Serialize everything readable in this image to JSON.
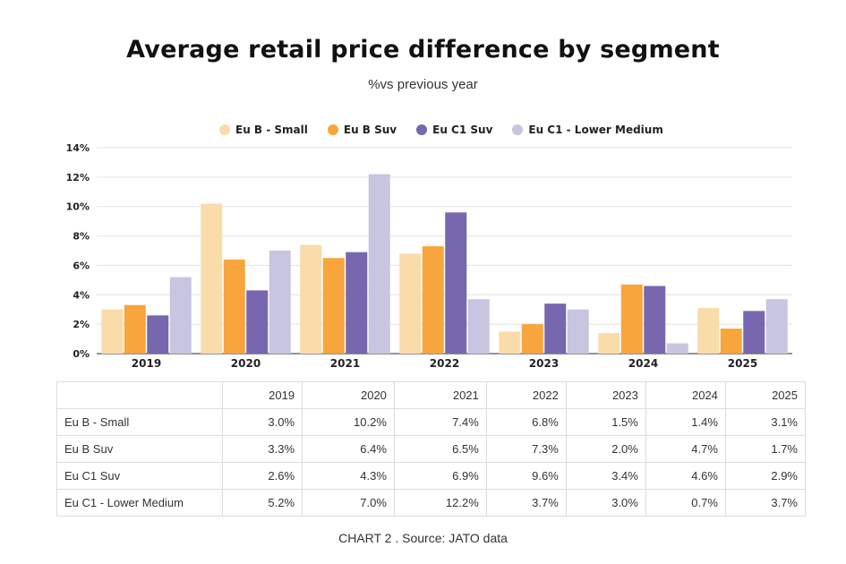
{
  "chart_data": {
    "type": "bar",
    "title": "Average retail price difference by segment",
    "subtitle": "%vs previous year",
    "categories": [
      "2019",
      "2020",
      "2021",
      "2022",
      "2023",
      "2024",
      "2025"
    ],
    "series": [
      {
        "name": "Eu B - Small",
        "color": "#f9dcaa",
        "values": [
          3.0,
          10.2,
          7.4,
          6.8,
          1.5,
          1.4,
          3.1
        ],
        "labels": [
          "3.0%",
          "10.2%",
          "7.4%",
          "6.8%",
          "1.5%",
          "1.4%",
          "3.1%"
        ]
      },
      {
        "name": "Eu B Suv",
        "color": "#f7a53c",
        "values": [
          3.3,
          6.4,
          6.5,
          7.3,
          2.0,
          4.7,
          1.7
        ],
        "labels": [
          "3.3%",
          "6.4%",
          "6.5%",
          "7.3%",
          "2.0%",
          "4.7%",
          "1.7%"
        ]
      },
      {
        "name": "Eu C1 Suv",
        "color": "#7767ae",
        "values": [
          2.6,
          4.3,
          6.9,
          9.6,
          3.4,
          4.6,
          2.9
        ],
        "labels": [
          "2.6%",
          "4.3%",
          "6.9%",
          "9.6%",
          "3.4%",
          "4.6%",
          "2.9%"
        ]
      },
      {
        "name": "Eu C1 - Lower Medium",
        "color": "#c8c5e0",
        "values": [
          5.2,
          7.0,
          12.2,
          3.7,
          3.0,
          0.7,
          3.7
        ],
        "labels": [
          "5.2%",
          "7.0%",
          "12.2%",
          "3.7%",
          "3.0%",
          "0.7%",
          "3.7%"
        ]
      }
    ],
    "ylim": [
      0,
      14
    ],
    "yticks": [
      0,
      2,
      4,
      6,
      8,
      10,
      12,
      14
    ],
    "ytick_labels": [
      "0%",
      "2%",
      "4%",
      "6%",
      "8%",
      "10%",
      "12%",
      "14%"
    ],
    "xlabel": "",
    "ylabel": "",
    "grid": true,
    "legend": "top-center"
  },
  "caption": "CHART 2 . Source: JATO data",
  "colors": {
    "grid": "#e2e2e2",
    "axis": "#555555"
  }
}
